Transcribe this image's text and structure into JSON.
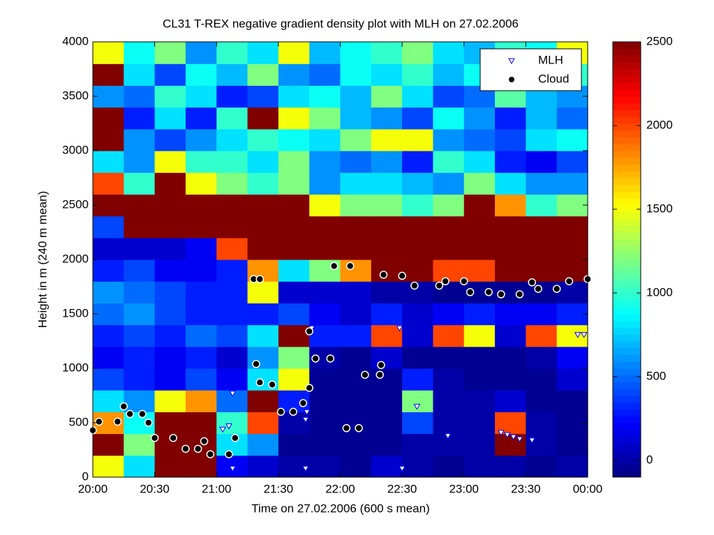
{
  "chart_data": {
    "type": "heatmap",
    "title": "CL31 T-REX negative gradient density plot with MLH on 27.02.2006",
    "xlabel": "Time on 27.02.2006 (600 s mean)",
    "ylabel": "Height in m (240 m mean)",
    "xlim": [
      20,
      24
    ],
    "xticks": [
      {
        "value": 20,
        "label": "20:00"
      },
      {
        "value": 20.5,
        "label": "20:30"
      },
      {
        "value": 21,
        "label": "21:00"
      },
      {
        "value": 21.5,
        "label": "21:30"
      },
      {
        "value": 22,
        "label": "22:00"
      },
      {
        "value": 22.5,
        "label": "22:30"
      },
      {
        "value": 23,
        "label": "23:00"
      },
      {
        "value": 23.5,
        "label": "23:30"
      },
      {
        "value": 24,
        "label": "00:00"
      }
    ],
    "ylim": [
      0,
      4000
    ],
    "yticks": [
      0,
      500,
      1000,
      1500,
      2000,
      2500,
      3000,
      3500,
      4000
    ],
    "colormap": "jet",
    "clim": [
      -100,
      2500
    ],
    "cticks": [
      0,
      500,
      1000,
      1500,
      2000,
      2500
    ],
    "x": [
      20.125,
      20.375,
      20.625,
      20.875,
      21.125,
      21.375,
      21.625,
      21.875,
      22.125,
      22.375,
      22.625,
      22.875,
      23.125,
      23.375,
      23.625,
      23.875
    ],
    "y": [
      100,
      300,
      500,
      700,
      900,
      1100,
      1300,
      1500,
      1700,
      1900,
      2100,
      2300,
      2500,
      2700,
      2900,
      3100,
      3300,
      3500,
      3700,
      3900
    ],
    "z": [
      [
        1500,
        800,
        2500,
        2500,
        200,
        100,
        0,
        0,
        -50,
        100,
        0,
        -50,
        0,
        0,
        -50,
        0
      ],
      [
        2500,
        1200,
        2500,
        2500,
        800,
        600,
        -50,
        -50,
        -50,
        -50,
        0,
        0,
        0,
        2500,
        0,
        -50
      ],
      [
        1800,
        900,
        2500,
        2500,
        1000,
        2000,
        0,
        -50,
        -50,
        -50,
        400,
        0,
        0,
        2000,
        0,
        -50
      ],
      [
        800,
        600,
        1500,
        1800,
        500,
        2500,
        300,
        -50,
        -50,
        -50,
        1200,
        0,
        0,
        100,
        -50,
        -50
      ],
      [
        400,
        300,
        200,
        400,
        200,
        800,
        1500,
        -50,
        -50,
        -50,
        300,
        0,
        -50,
        -50,
        -50,
        100
      ],
      [
        200,
        300,
        200,
        300,
        100,
        600,
        1200,
        0,
        -50,
        100,
        -50,
        -50,
        -50,
        -50,
        0,
        200
      ],
      [
        300,
        400,
        300,
        500,
        400,
        800,
        2500,
        300,
        300,
        2000,
        100,
        2000,
        1500,
        100,
        2000,
        1500
      ],
      [
        500,
        600,
        400,
        300,
        300,
        300,
        400,
        200,
        100,
        300,
        100,
        200,
        300,
        200,
        200,
        300
      ],
      [
        600,
        500,
        400,
        300,
        300,
        1500,
        100,
        100,
        100,
        0,
        0,
        -50,
        -50,
        -50,
        -50,
        0
      ],
      [
        300,
        400,
        200,
        200,
        300,
        1800,
        800,
        1200,
        1800,
        2500,
        2500,
        2000,
        2000,
        2500,
        2500,
        2500
      ],
      [
        100,
        100,
        100,
        200,
        2000,
        2500,
        2500,
        2500,
        2500,
        2500,
        2500,
        2500,
        2500,
        2500,
        2500,
        2500
      ],
      [
        400,
        2500,
        2500,
        2500,
        2500,
        2500,
        2500,
        2500,
        2500,
        2500,
        2500,
        2500,
        2500,
        2500,
        2500,
        2500
      ],
      [
        2500,
        2500,
        2500,
        2500,
        2500,
        2500,
        2500,
        1500,
        1200,
        1200,
        1000,
        1200,
        2500,
        1800,
        1000,
        1200
      ],
      [
        2000,
        1000,
        2500,
        1500,
        1200,
        1000,
        1200,
        600,
        800,
        800,
        700,
        600,
        1200,
        800,
        600,
        600
      ],
      [
        800,
        600,
        1500,
        1000,
        1000,
        800,
        1200,
        600,
        500,
        600,
        300,
        1000,
        800,
        300,
        200,
        400
      ],
      [
        2500,
        600,
        400,
        600,
        800,
        1000,
        900,
        800,
        1200,
        1500,
        1500,
        600,
        500,
        400,
        800,
        900
      ],
      [
        2500,
        300,
        800,
        300,
        1000,
        2500,
        1500,
        1200,
        700,
        600,
        400,
        900,
        600,
        300,
        700,
        500
      ],
      [
        600,
        500,
        1000,
        800,
        300,
        400,
        800,
        900,
        700,
        1200,
        800,
        400,
        500,
        1100,
        700,
        600
      ],
      [
        2500,
        800,
        400,
        900,
        700,
        1200,
        600,
        500,
        900,
        800,
        1000,
        700,
        900,
        600,
        1100,
        1000
      ],
      [
        1500,
        900,
        1200,
        600,
        1000,
        800,
        1500,
        700,
        900,
        1000,
        1200,
        800,
        700,
        1000,
        900,
        1500
      ]
    ],
    "legend": "upper right",
    "series": [
      {
        "name": "MLH",
        "type": "scatter",
        "marker": "triangle-down",
        "color": "#0000ff",
        "x": [
          21.05,
          21.1,
          21.13,
          21.13,
          21.72,
          21.72,
          21.73,
          21.77,
          22.48,
          22.5,
          22.62,
          22.87,
          23.3,
          23.35,
          23.4,
          23.45,
          23.55,
          23.92,
          23.97
        ],
        "y": [
          440,
          470,
          770,
          80,
          80,
          530,
          600,
          1370,
          1370,
          80,
          650,
          380,
          410,
          390,
          370,
          350,
          340,
          1310,
          1310
        ]
      },
      {
        "name": "Cloud",
        "type": "scatter",
        "marker": "circle",
        "color": "#000000",
        "x": [
          20.0,
          20.05,
          20.2,
          20.25,
          20.3,
          20.4,
          20.45,
          20.5,
          20.65,
          20.75,
          20.85,
          20.9,
          20.95,
          21.1,
          21.15,
          21.3,
          21.35,
          21.32,
          21.35,
          21.45,
          21.52,
          21.62,
          21.7,
          21.75,
          21.75,
          21.8,
          21.92,
          21.95,
          22.08,
          22.05,
          22.15,
          22.2,
          22.32,
          22.33,
          22.35,
          22.5,
          22.6,
          22.8,
          22.85,
          23.0,
          23.05,
          23.2,
          23.3,
          23.45,
          23.55,
          23.6,
          23.75,
          23.85,
          24.0
        ],
        "y": [
          430,
          510,
          510,
          650,
          580,
          580,
          500,
          360,
          360,
          260,
          260,
          330,
          210,
          210,
          360,
          1820,
          1820,
          1040,
          870,
          850,
          600,
          600,
          680,
          820,
          1340,
          1090,
          1090,
          1940,
          1940,
          450,
          450,
          940,
          940,
          1030,
          1860,
          1850,
          1760,
          1760,
          1800,
          1800,
          1700,
          1700,
          1680,
          1680,
          1790,
          1730,
          1730,
          1800,
          1820
        ]
      }
    ]
  }
}
